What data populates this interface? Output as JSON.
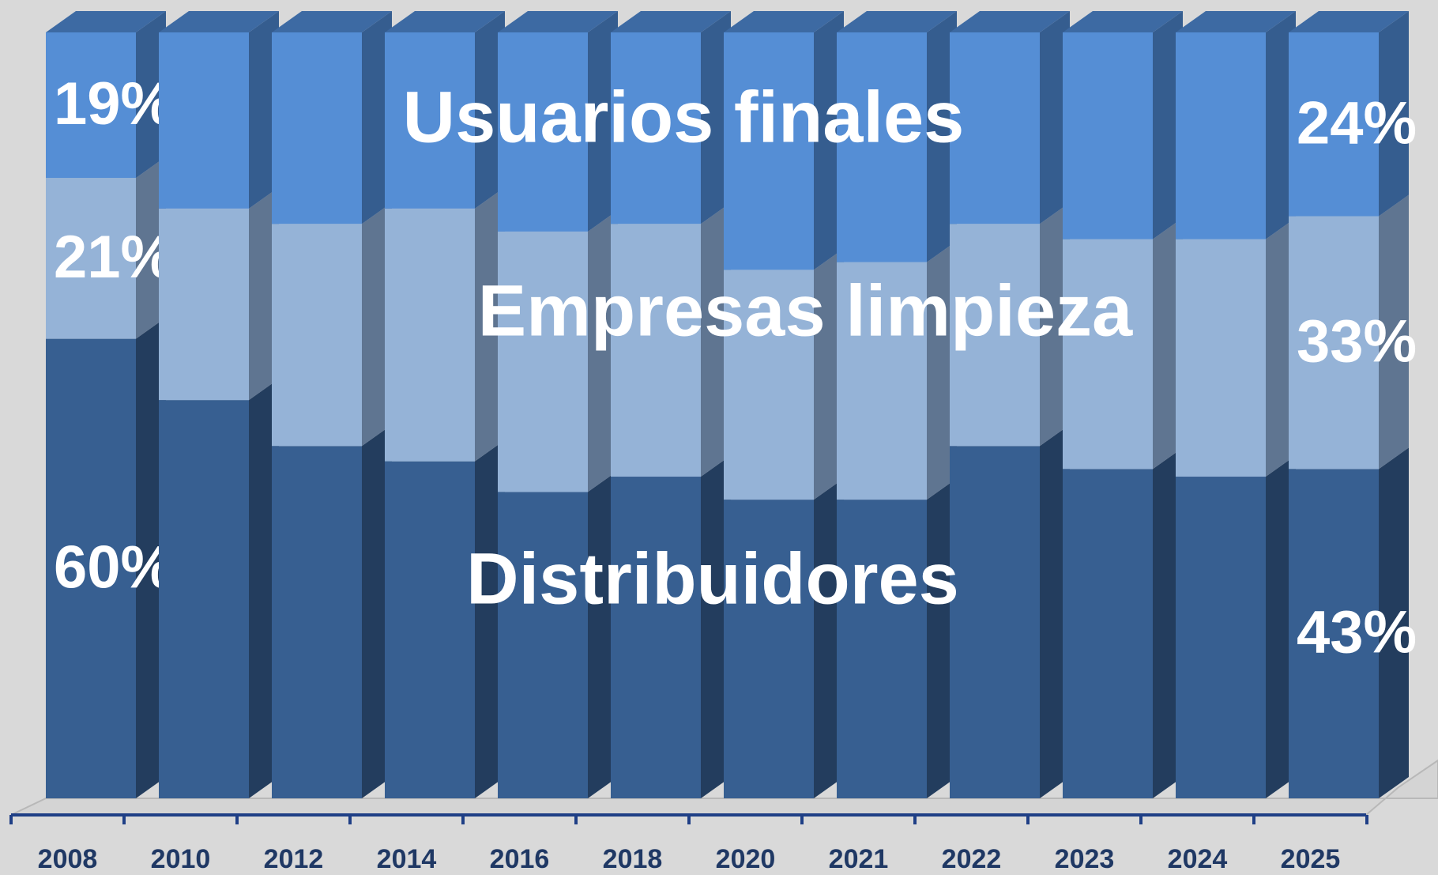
{
  "chart_data": {
    "type": "stacked_bar_3d",
    "categories": [
      "2008",
      "2010",
      "2012",
      "2014",
      "2016",
      "2018",
      "2020",
      "2021",
      "2022",
      "2023",
      "2024",
      "2025"
    ],
    "series": [
      {
        "name": "Distribuidores",
        "color": "#375f91",
        "side_color": "#233d5e",
        "top_color": "#2f5280",
        "values": [
          60,
          52,
          46,
          44,
          40,
          42,
          39,
          39,
          46,
          43,
          42,
          43
        ],
        "value_labels": [
          "60%",
          null,
          null,
          null,
          null,
          null,
          null,
          null,
          null,
          null,
          null,
          "43%"
        ]
      },
      {
        "name": "Empresas limpieza",
        "color": "#95b3d7",
        "side_color": "#5f7591",
        "top_color": "#7d97b8",
        "values": [
          21,
          25,
          29,
          33,
          34,
          33,
          30,
          31,
          29,
          30,
          31,
          33
        ],
        "value_labels": [
          "21%",
          null,
          null,
          null,
          null,
          null,
          null,
          null,
          null,
          null,
          null,
          "33%"
        ]
      },
      {
        "name": "Usuarios finales",
        "color": "#558ed5",
        "side_color": "#355d8f",
        "top_color": "#3d6aa3",
        "values": [
          19,
          23,
          25,
          23,
          26,
          25,
          31,
          30,
          25,
          27,
          27,
          24
        ],
        "value_labels": [
          "19%",
          null,
          null,
          null,
          null,
          null,
          null,
          null,
          null,
          null,
          null,
          "24%"
        ]
      }
    ],
    "ylim": [
      0,
      100
    ]
  }
}
